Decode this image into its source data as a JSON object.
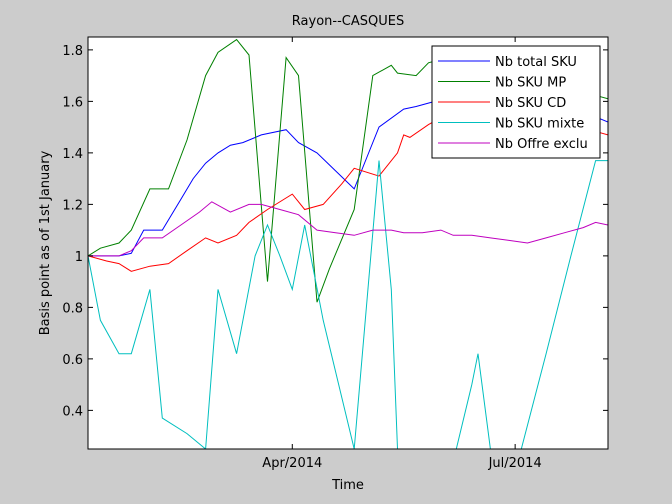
{
  "chart_data": {
    "type": "line",
    "title": "Rayon--CASQUES",
    "xlabel": "Time",
    "ylabel": "Basis point as of 1st January",
    "xlim": [
      0,
      84
    ],
    "ylim": [
      0.25,
      1.85
    ],
    "xticks": [
      {
        "value": 33,
        "label": "Apr/2014"
      },
      {
        "value": 69,
        "label": "Jul/2014"
      }
    ],
    "yticks": [
      0.4,
      0.6,
      0.8,
      1,
      1.2,
      1.4,
      1.6,
      1.8
    ],
    "grid": false,
    "legend_position": "top-right",
    "series": [
      {
        "name": "Nb total SKU",
        "color": "#0000ff",
        "points": [
          [
            0,
            1
          ],
          [
            3,
            1.0
          ],
          [
            5,
            1.0
          ],
          [
            7,
            1.01
          ],
          [
            9,
            1.1
          ],
          [
            12,
            1.1
          ],
          [
            15,
            1.22
          ],
          [
            17,
            1.3
          ],
          [
            19,
            1.36
          ],
          [
            21,
            1.4
          ],
          [
            23,
            1.43
          ],
          [
            25,
            1.44
          ],
          [
            28,
            1.47
          ],
          [
            32,
            1.49
          ],
          [
            34,
            1.44
          ],
          [
            37,
            1.4
          ],
          [
            40,
            1.33
          ],
          [
            43,
            1.26
          ],
          [
            45,
            1.38
          ],
          [
            47,
            1.5
          ],
          [
            51,
            1.57
          ],
          [
            53,
            1.58
          ],
          [
            56,
            1.6
          ],
          [
            58,
            1.63
          ],
          [
            61,
            1.67
          ],
          [
            64,
            1.69
          ],
          [
            67,
            1.7
          ],
          [
            70,
            1.7
          ],
          [
            74,
            1.65
          ],
          [
            78,
            1.6
          ],
          [
            81,
            1.55
          ],
          [
            84,
            1.52
          ]
        ]
      },
      {
        "name": "Nb SKU MP",
        "color": "#008000",
        "points": [
          [
            0,
            1
          ],
          [
            2,
            1.03
          ],
          [
            5,
            1.05
          ],
          [
            7,
            1.1
          ],
          [
            10,
            1.26
          ],
          [
            13,
            1.26
          ],
          [
            16,
            1.45
          ],
          [
            19,
            1.7
          ],
          [
            21,
            1.79
          ],
          [
            24,
            1.84
          ],
          [
            26,
            1.78
          ],
          [
            29,
            0.9
          ],
          [
            32,
            1.77
          ],
          [
            34,
            1.7
          ],
          [
            37,
            0.82
          ],
          [
            39,
            0.95
          ],
          [
            43,
            1.18
          ],
          [
            46,
            1.7
          ],
          [
            49,
            1.74
          ],
          [
            50,
            1.71
          ],
          [
            53,
            1.7
          ],
          [
            55,
            1.75
          ],
          [
            58,
            1.77
          ],
          [
            61,
            1.78
          ],
          [
            64,
            1.76
          ],
          [
            67,
            1.74
          ],
          [
            70,
            1.72
          ],
          [
            74,
            1.68
          ],
          [
            78,
            1.65
          ],
          [
            81,
            1.63
          ],
          [
            84,
            1.61
          ]
        ]
      },
      {
        "name": "Nb SKU CD",
        "color": "#ff0000",
        "points": [
          [
            0,
            1
          ],
          [
            3,
            0.98
          ],
          [
            5,
            0.97
          ],
          [
            7,
            0.94
          ],
          [
            10,
            0.96
          ],
          [
            13,
            0.97
          ],
          [
            16,
            1.02
          ],
          [
            19,
            1.07
          ],
          [
            21,
            1.05
          ],
          [
            24,
            1.08
          ],
          [
            26,
            1.13
          ],
          [
            29,
            1.18
          ],
          [
            33,
            1.24
          ],
          [
            35,
            1.18
          ],
          [
            38,
            1.2
          ],
          [
            41,
            1.28
          ],
          [
            43,
            1.34
          ],
          [
            47,
            1.31
          ],
          [
            50,
            1.4
          ],
          [
            51,
            1.47
          ],
          [
            52,
            1.46
          ],
          [
            55,
            1.51
          ],
          [
            58,
            1.55
          ],
          [
            61,
            1.58
          ],
          [
            64,
            1.6
          ],
          [
            67,
            1.58
          ],
          [
            70,
            1.55
          ],
          [
            74,
            1.52
          ],
          [
            78,
            1.5
          ],
          [
            81,
            1.49
          ],
          [
            84,
            1.47
          ]
        ]
      },
      {
        "name": "Nb SKU mixte",
        "color": "#00bfbf",
        "points": [
          [
            0,
            1
          ],
          [
            2,
            0.75
          ],
          [
            5,
            0.62
          ],
          [
            7,
            0.62
          ],
          [
            10,
            0.87
          ],
          [
            12,
            0.37
          ],
          [
            16,
            0.31
          ],
          [
            19,
            0.25
          ],
          [
            21,
            0.87
          ],
          [
            24,
            0.62
          ],
          [
            27,
            1.0
          ],
          [
            29,
            1.12
          ],
          [
            31,
            1.0
          ],
          [
            33,
            0.87
          ],
          [
            35,
            1.12
          ],
          [
            38,
            0.75
          ],
          [
            40,
            0.55
          ],
          [
            43,
            0.25
          ],
          [
            47,
            1.37
          ],
          [
            49,
            0.87
          ],
          [
            50,
            0.25
          ],
          [
            54,
            0.1
          ],
          [
            58,
            0.1
          ],
          [
            62,
            0.5
          ],
          [
            63,
            0.62
          ],
          [
            65,
            0.25
          ],
          [
            67,
            0.12
          ],
          [
            70,
            0.25
          ],
          [
            74,
            0.62
          ],
          [
            78,
            1.0
          ],
          [
            82,
            1.37
          ],
          [
            84,
            1.37
          ],
          [
            85,
            0.8
          ]
        ]
      },
      {
        "name": "Nb Offre exclu",
        "color": "#bf00bf",
        "points": [
          [
            0,
            1
          ],
          [
            3,
            1.0
          ],
          [
            5,
            1.0
          ],
          [
            7,
            1.02
          ],
          [
            9,
            1.07
          ],
          [
            12,
            1.07
          ],
          [
            15,
            1.12
          ],
          [
            18,
            1.17
          ],
          [
            20,
            1.21
          ],
          [
            23,
            1.17
          ],
          [
            26,
            1.2
          ],
          [
            28,
            1.2
          ],
          [
            31,
            1.18
          ],
          [
            34,
            1.16
          ],
          [
            37,
            1.1
          ],
          [
            40,
            1.09
          ],
          [
            43,
            1.08
          ],
          [
            46,
            1.1
          ],
          [
            49,
            1.1
          ],
          [
            51,
            1.09
          ],
          [
            54,
            1.09
          ],
          [
            57,
            1.1
          ],
          [
            59,
            1.08
          ],
          [
            62,
            1.08
          ],
          [
            65,
            1.07
          ],
          [
            68,
            1.06
          ],
          [
            71,
            1.05
          ],
          [
            74,
            1.07
          ],
          [
            77,
            1.09
          ],
          [
            80,
            1.11
          ],
          [
            82,
            1.13
          ],
          [
            84,
            1.12
          ]
        ]
      }
    ]
  }
}
